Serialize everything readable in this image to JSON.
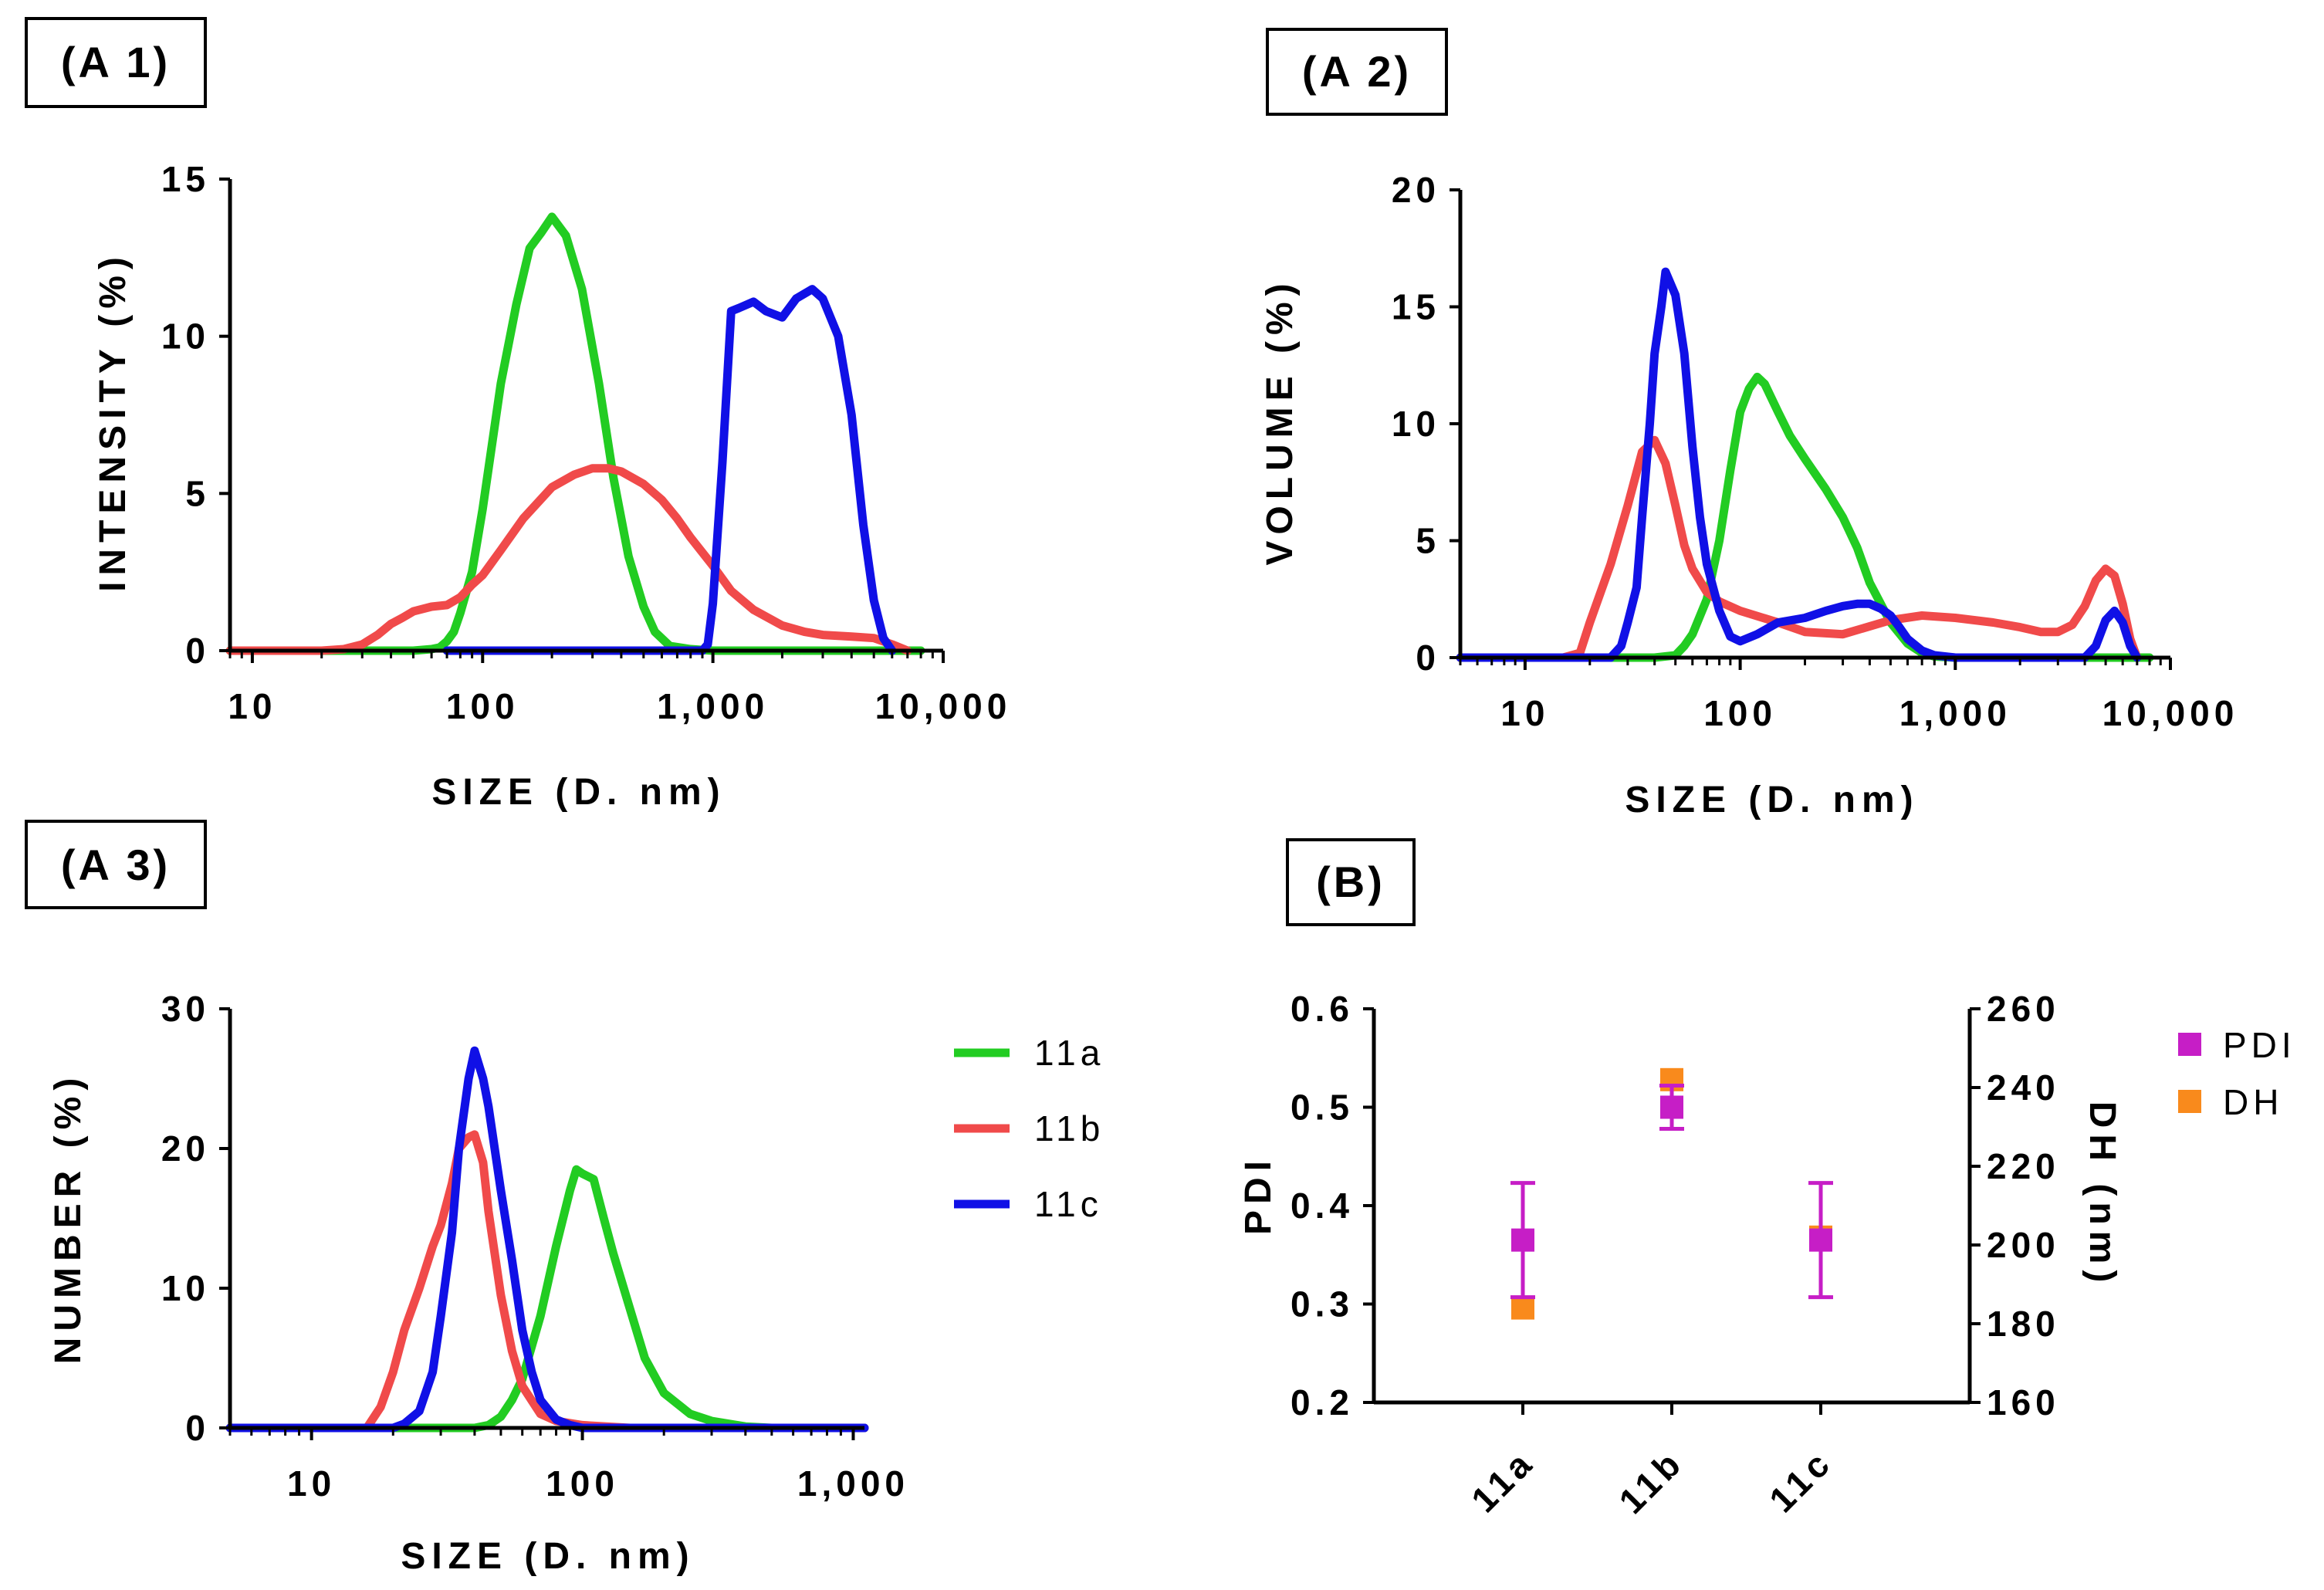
{
  "colors": {
    "11a": "#22cc22",
    "11b": "#f04a4a",
    "11c": "#1010e6",
    "PDI": "#c61ec6",
    "DH": "#f98a1c"
  },
  "chart_data": [
    {
      "id": "A1",
      "type": "line",
      "panel_label": "(A 1)",
      "xlabel": "SIZE (D. nm)",
      "ylabel": "INTENSITY (%)",
      "xscale": "log",
      "xlim": [
        8,
        10000
      ],
      "ylim": [
        0,
        15
      ],
      "xticks": [
        10,
        100,
        1000,
        10000
      ],
      "xtick_labels": [
        "10",
        "100",
        "1,000",
        "10,000"
      ],
      "yticks": [
        0,
        5,
        10,
        15
      ],
      "ytick_labels": [
        "0",
        "5",
        "10",
        "15"
      ],
      "series": [
        {
          "name": "11a",
          "x": [
            8,
            50,
            60,
            65,
            70,
            75,
            80,
            90,
            100,
            120,
            140,
            160,
            180,
            200,
            230,
            270,
            320,
            370,
            430,
            500,
            560,
            650,
            800,
            1000,
            2000,
            5000,
            8000
          ],
          "y": [
            0,
            0,
            0.05,
            0.1,
            0.3,
            0.6,
            1.2,
            2.5,
            4.5,
            8.5,
            11,
            12.8,
            13.3,
            13.8,
            13.2,
            11.5,
            8.5,
            5.5,
            3,
            1.4,
            0.6,
            0.15,
            0.05,
            0,
            0,
            0,
            0
          ]
        },
        {
          "name": "11b",
          "x": [
            8,
            20,
            25,
            30,
            35,
            40,
            45,
            50,
            60,
            70,
            80,
            90,
            100,
            120,
            150,
            200,
            250,
            300,
            350,
            400,
            500,
            600,
            700,
            800,
            1000,
            1200,
            1500,
            2000,
            2500,
            3000,
            4000,
            5000,
            6000,
            7000
          ],
          "y": [
            0,
            0,
            0.05,
            0.2,
            0.5,
            0.85,
            1.05,
            1.25,
            1.4,
            1.45,
            1.7,
            2.1,
            2.4,
            3.2,
            4.2,
            5.2,
            5.6,
            5.8,
            5.8,
            5.7,
            5.3,
            4.8,
            4.2,
            3.6,
            2.7,
            1.9,
            1.3,
            0.8,
            0.6,
            0.5,
            0.45,
            0.4,
            0.2,
            0
          ]
        },
        {
          "name": "11c",
          "x": [
            70,
            900,
            950,
            1000,
            1100,
            1200,
            1300,
            1500,
            1700,
            2000,
            2300,
            2700,
            3000,
            3500,
            4000,
            4500,
            5000,
            5500,
            6000
          ],
          "y": [
            0,
            0,
            0.2,
            1.5,
            6,
            10.8,
            10.9,
            11.1,
            10.8,
            10.6,
            11.2,
            11.5,
            11.2,
            10,
            7.5,
            4,
            1.6,
            0.4,
            0
          ]
        }
      ]
    },
    {
      "id": "A2",
      "type": "line",
      "panel_label": "(A 2)",
      "xlabel": "SIZE (D. nm)",
      "ylabel": "VOLUME (%)",
      "xscale": "log",
      "xlim": [
        5,
        10000
      ],
      "ylim": [
        0,
        20
      ],
      "xticks": [
        10,
        100,
        1000,
        10000
      ],
      "xtick_labels": [
        "10",
        "100",
        "1,000",
        "10,000"
      ],
      "yticks": [
        0,
        5,
        10,
        15,
        20
      ],
      "ytick_labels": [
        "0",
        "5",
        "10",
        "15",
        "20"
      ],
      "series": [
        {
          "name": "11a",
          "x": [
            5,
            30,
            40,
            50,
            55,
            60,
            70,
            80,
            90,
            100,
            110,
            120,
            130,
            150,
            170,
            200,
            250,
            300,
            350,
            400,
            500,
            600,
            700,
            800,
            1000,
            8000
          ],
          "y": [
            0,
            0,
            0,
            0.1,
            0.5,
            1,
            2.5,
            5,
            8,
            10.5,
            11.5,
            12,
            11.7,
            10.5,
            9.5,
            8.5,
            7.2,
            6,
            4.7,
            3.2,
            1.5,
            0.6,
            0.2,
            0.05,
            0,
            0
          ]
        },
        {
          "name": "11b",
          "x": [
            5,
            15,
            18,
            20,
            25,
            30,
            35,
            40,
            45,
            50,
            55,
            60,
            70,
            80,
            100,
            150,
            200,
            300,
            500,
            700,
            1000,
            1500,
            2000,
            2500,
            3000,
            3500,
            4000,
            4500,
            5000,
            5500,
            6000,
            6500,
            7000
          ],
          "y": [
            0,
            0,
            0.2,
            1.5,
            4,
            6.5,
            8.8,
            9.3,
            8.3,
            6.5,
            4.8,
            3.8,
            2.8,
            2.4,
            2,
            1.5,
            1.1,
            1,
            1.6,
            1.8,
            1.7,
            1.5,
            1.3,
            1.1,
            1.1,
            1.4,
            2.2,
            3.3,
            3.8,
            3.5,
            2.3,
            0.8,
            0
          ]
        },
        {
          "name": "11c",
          "x": [
            5,
            25,
            28,
            30,
            33,
            35,
            38,
            40,
            43,
            45,
            50,
            55,
            60,
            65,
            70,
            80,
            90,
            100,
            120,
            150,
            200,
            250,
            300,
            350,
            400,
            450,
            500,
            550,
            600,
            700,
            800,
            1000,
            2000,
            4000,
            4500,
            5000,
            5500,
            6000,
            6500,
            7000
          ],
          "y": [
            0,
            0,
            0.5,
            1.5,
            3,
            6,
            10,
            13,
            15,
            16.5,
            15.5,
            13,
            9,
            6,
            4,
            2,
            0.9,
            0.7,
            1,
            1.5,
            1.7,
            2,
            2.2,
            2.3,
            2.3,
            2.1,
            1.8,
            1.3,
            0.8,
            0.3,
            0.1,
            0,
            0,
            0,
            0.5,
            1.6,
            2,
            1.5,
            0.5,
            0
          ]
        }
      ]
    },
    {
      "id": "A3",
      "type": "line",
      "panel_label": "(A 3)",
      "xlabel": "SIZE (D. nm)",
      "ylabel": "NUMBER (%)",
      "xscale": "log",
      "xlim": [
        5,
        1100
      ],
      "ylim": [
        0,
        30
      ],
      "xticks": [
        10,
        100,
        1000
      ],
      "xtick_labels": [
        "10",
        "100",
        "1,000"
      ],
      "yticks": [
        0,
        10,
        20,
        30
      ],
      "ytick_labels": [
        "0",
        "10",
        "20",
        "30"
      ],
      "series": [
        {
          "name": "11a",
          "x": [
            5,
            40,
            45,
            50,
            55,
            60,
            70,
            80,
            90,
            95,
            100,
            110,
            120,
            130,
            150,
            170,
            200,
            250,
            300,
            400,
            500,
            1100
          ],
          "y": [
            0,
            0,
            0.2,
            0.8,
            2,
            3.5,
            8,
            13,
            17,
            18.5,
            18.2,
            17.8,
            15,
            12.5,
            8.5,
            5,
            2.5,
            1,
            0.5,
            0.1,
            0,
            0
          ]
        },
        {
          "name": "11b",
          "x": [
            5,
            16,
            18,
            20,
            22,
            25,
            28,
            30,
            33,
            35,
            38,
            40,
            43,
            45,
            50,
            55,
            60,
            70,
            80,
            100,
            150,
            1100
          ],
          "y": [
            0,
            0,
            1.5,
            4,
            7,
            10,
            13,
            14.5,
            17.5,
            20,
            20.8,
            21,
            19,
            15.5,
            9.5,
            5.5,
            3,
            1,
            0.5,
            0.2,
            0,
            0
          ]
        },
        {
          "name": "11c",
          "x": [
            5,
            20,
            22,
            25,
            28,
            30,
            33,
            35,
            38,
            40,
            43,
            45,
            50,
            55,
            60,
            65,
            70,
            80,
            90,
            100,
            1100
          ],
          "y": [
            0,
            0,
            0.3,
            1.2,
            4,
            8,
            14,
            20,
            25,
            27,
            25,
            23,
            17,
            12,
            7,
            4,
            2,
            0.6,
            0.2,
            0,
            0
          ]
        }
      ]
    },
    {
      "id": "B",
      "type": "scatter",
      "panel_label": "(B)",
      "categories": [
        "11a",
        "11b",
        "11c"
      ],
      "ylabel": "PDI",
      "y2label": "DH (nm)",
      "ylim": [
        0.2,
        0.6
      ],
      "y2lim": [
        160,
        260
      ],
      "yticks": [
        0.2,
        0.3,
        0.4,
        0.5,
        0.6
      ],
      "ytick_labels": [
        "0.2",
        "0.3",
        "0.4",
        "0.5",
        "0.6"
      ],
      "y2ticks": [
        160,
        180,
        200,
        220,
        240,
        260
      ],
      "y2tick_labels": [
        "160",
        "180",
        "200",
        "220",
        "240",
        "260"
      ],
      "series": [
        {
          "name": "PDI",
          "axis": "left",
          "values": [
            0.365,
            0.5,
            0.365
          ],
          "errors": [
            0.058,
            0.022,
            0.058
          ]
        },
        {
          "name": "DH",
          "axis": "right",
          "values": [
            184,
            242,
            202
          ]
        }
      ]
    }
  ],
  "legend_a": [
    {
      "key": "11a",
      "label": "11a"
    },
    {
      "key": "11b",
      "label": "11b"
    },
    {
      "key": "11c",
      "label": "11c"
    }
  ],
  "legend_b": [
    {
      "key": "PDI",
      "label": "PDI"
    },
    {
      "key": "DH",
      "label": "DH"
    }
  ]
}
